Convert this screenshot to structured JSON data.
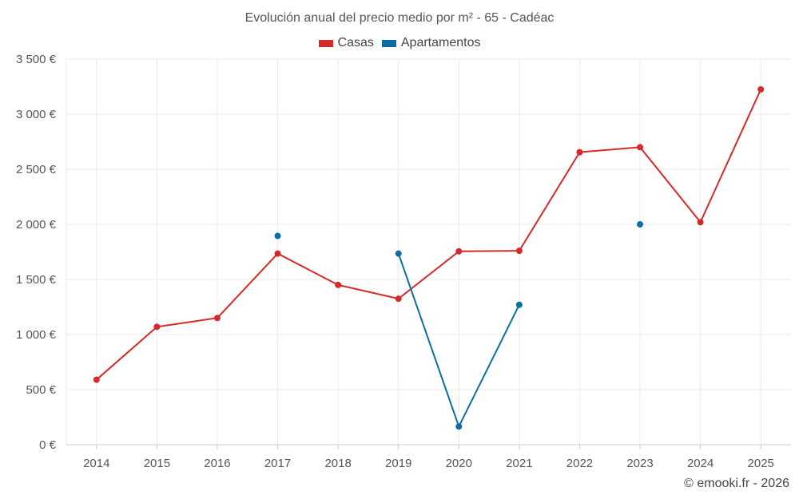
{
  "title": "Evolución anual del precio medio por m² - 65 - Cadéac",
  "footer": "© emooki.fr - 2026",
  "colors": {
    "casas": "#d62a2a",
    "apartamentos": "#0b6fa4",
    "grid": "#ebebeb",
    "axis": "#cccccc"
  },
  "chart_data": {
    "type": "line",
    "title": "Evolución anual del precio medio por m² - 65 - Cadéac",
    "xlabel": "",
    "ylabel": "",
    "categories": [
      "2014",
      "2015",
      "2016",
      "2017",
      "2018",
      "2019",
      "2020",
      "2021",
      "2022",
      "2023",
      "2024",
      "2025"
    ],
    "ylim": [
      0,
      3500
    ],
    "yticks": [
      0,
      500,
      1000,
      1500,
      2000,
      2500,
      3000,
      3500
    ],
    "ytick_labels": [
      "0 €",
      "500 €",
      "1 000 €",
      "1 500 €",
      "2 000 €",
      "2 500 €",
      "3 000 €",
      "3 500 €"
    ],
    "legend_position": "top-center",
    "grid": true,
    "series": [
      {
        "name": "Casas",
        "color": "#d62a2a",
        "values": [
          590,
          1070,
          1150,
          1735,
          1450,
          1325,
          1755,
          1760,
          2655,
          2700,
          2020,
          3225
        ]
      },
      {
        "name": "Apartamentos",
        "color": "#0b6fa4",
        "values": [
          null,
          null,
          null,
          1895,
          null,
          1735,
          165,
          1270,
          null,
          2000,
          null,
          null
        ]
      }
    ]
  }
}
